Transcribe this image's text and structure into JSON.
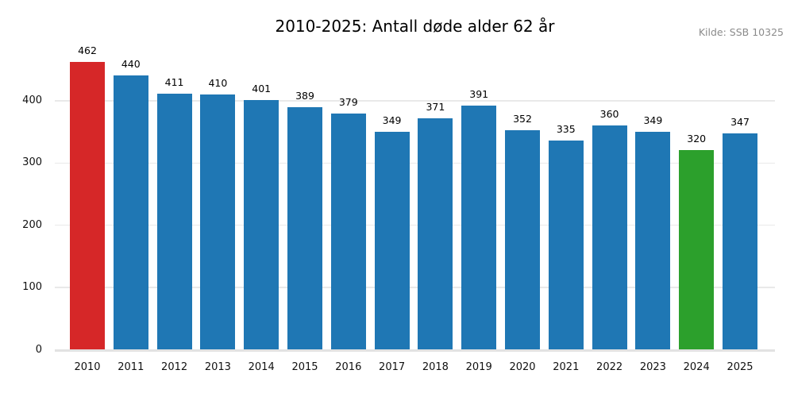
{
  "chart_data": {
    "type": "bar",
    "title": "2010-2025: Antall døde alder 62 år",
    "source_note": "Kilde: SSB 10325",
    "xlabel": "",
    "ylabel": "",
    "categories": [
      "2010",
      "2011",
      "2012",
      "2013",
      "2014",
      "2015",
      "2016",
      "2017",
      "2018",
      "2019",
      "2020",
      "2021",
      "2022",
      "2023",
      "2024",
      "2025"
    ],
    "values": [
      462,
      440,
      411,
      410,
      401,
      389,
      379,
      349,
      371,
      391,
      352,
      335,
      360,
      349,
      320,
      347
    ],
    "bar_colors": [
      "#d62728",
      "#1f77b4",
      "#1f77b4",
      "#1f77b4",
      "#1f77b4",
      "#1f77b4",
      "#1f77b4",
      "#1f77b4",
      "#1f77b4",
      "#1f77b4",
      "#1f77b4",
      "#1f77b4",
      "#1f77b4",
      "#1f77b4",
      "#2ca02c",
      "#1f77b4"
    ],
    "default_bar_color": "#1f77b4",
    "highlight_colors": {
      "2010": "#d62728",
      "2024": "#2ca02c"
    },
    "value_labels_shown": true,
    "yticks": [
      0,
      100,
      200,
      300,
      400
    ],
    "ylim": [
      0,
      480
    ],
    "grid": true,
    "grid_color": "#e9e9e9",
    "baseline_color": "#e2e2e2",
    "background_color": "#ffffff",
    "legend": "none",
    "title_color": "#000000",
    "source_color": "#8b8b8b"
  }
}
